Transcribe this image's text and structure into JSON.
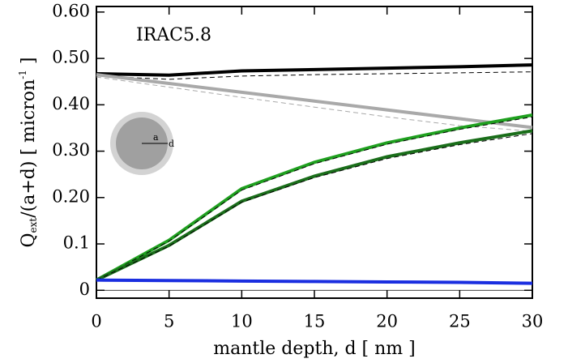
{
  "chart_data": {
    "type": "line",
    "annotation": "IRAC5.8",
    "inset_labels": {
      "a": "a",
      "d": "d"
    },
    "xlabel": "mantle depth, d [ nm ]",
    "ylabel": {
      "main": "Q",
      "sub": "ext",
      "mid": "/(a+d) [ micron",
      "sup": "-1",
      "end": " ]"
    },
    "x": [
      0,
      5,
      10,
      15,
      20,
      25,
      30
    ],
    "xlim": [
      0,
      30
    ],
    "xticks": [
      0,
      5,
      10,
      15,
      20,
      25,
      30
    ],
    "ylim": [
      -0.017,
      0.612
    ],
    "yticks": [
      0,
      0.1,
      {
        "value": 0.2,
        "label": "0.20"
      },
      {
        "value": 0.3,
        "label": "0.30"
      },
      {
        "value": 0.4,
        "label": "0.40"
      },
      {
        "value": 0.5,
        "label": "0.50"
      },
      {
        "value": 0.6,
        "label": "0.60"
      }
    ],
    "zero_line": true,
    "series": [
      {
        "color": "#000000",
        "dashed": false,
        "values": [
          0.467,
          0.464,
          0.473,
          0.476,
          0.479,
          0.482,
          0.486
        ]
      },
      {
        "color": "#000000",
        "dashed": true,
        "values": [
          0.462,
          0.455,
          0.462,
          0.465,
          0.467,
          0.469,
          0.471
        ]
      },
      {
        "color": "#a9a9a9",
        "dashed": false,
        "values": [
          0.465,
          0.446,
          0.427,
          0.408,
          0.389,
          0.37,
          0.351
        ]
      },
      {
        "color": "#a9a9a9",
        "dashed": true,
        "values": [
          0.46,
          0.438,
          0.416,
          0.395,
          0.374,
          0.355,
          0.343
        ]
      },
      {
        "color": "#1fa01f",
        "dashed": false,
        "values": [
          0.022,
          0.108,
          0.219,
          0.276,
          0.318,
          0.35,
          0.378
        ]
      },
      {
        "color": "#000000",
        "dashed": true,
        "values": [
          0.022,
          0.106,
          0.216,
          0.273,
          0.315,
          0.347,
          0.374
        ]
      },
      {
        "color": "#1a6e1a",
        "dashed": false,
        "values": [
          0.022,
          0.097,
          0.192,
          0.246,
          0.288,
          0.318,
          0.344
        ]
      },
      {
        "color": "#000000",
        "dashed": true,
        "values": [
          0.022,
          0.095,
          0.19,
          0.243,
          0.284,
          0.314,
          0.338
        ]
      },
      {
        "color": "#1a2ee0",
        "dashed": false,
        "values": [
          0.022,
          0.021,
          0.02,
          0.019,
          0.018,
          0.017,
          0.015
        ]
      }
    ]
  }
}
